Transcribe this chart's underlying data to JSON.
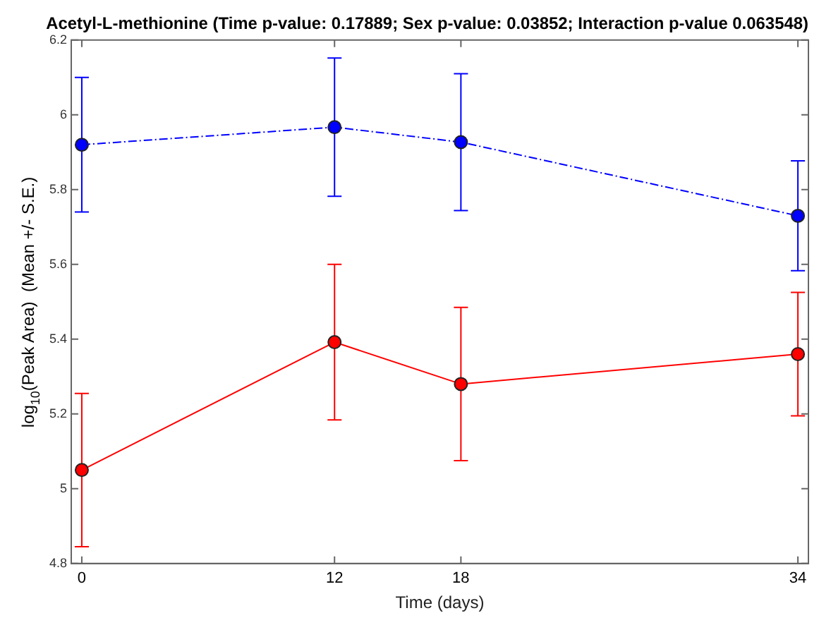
{
  "chart_data": {
    "type": "line",
    "title": "Acetyl-L-methionine (Time p-value: 0.17889; Sex p-value: 0.03852; Interaction p-value 0.063548)",
    "xlabel": "Time (days)",
    "ylabel": "log$_{10}$(Peak Area)  (Mean +/- S.E.)",
    "x": [
      0,
      12,
      18,
      34
    ],
    "series": [
      {
        "color": "#0000ff",
        "values": [
          5.92,
          5.967,
          5.927,
          5.73
        ],
        "errors": [
          0.18,
          0.185,
          0.183,
          0.147
        ],
        "line_style": "dashed"
      },
      {
        "color": "#ff0000",
        "values": [
          5.05,
          5.392,
          5.28,
          5.36
        ],
        "errors": [
          0.205,
          0.208,
          0.205,
          0.165
        ],
        "line_style": "solid"
      }
    ],
    "xlim": [
      -0.5,
      34.5
    ],
    "xticks": [
      0,
      12,
      18,
      34
    ],
    "ylim": [
      4.8,
      6.2
    ],
    "yticks": [
      4.8,
      5,
      5.2,
      5.4,
      5.6,
      5.8,
      6,
      6.2
    ],
    "marker": "circle",
    "grid": false,
    "legend": false
  }
}
